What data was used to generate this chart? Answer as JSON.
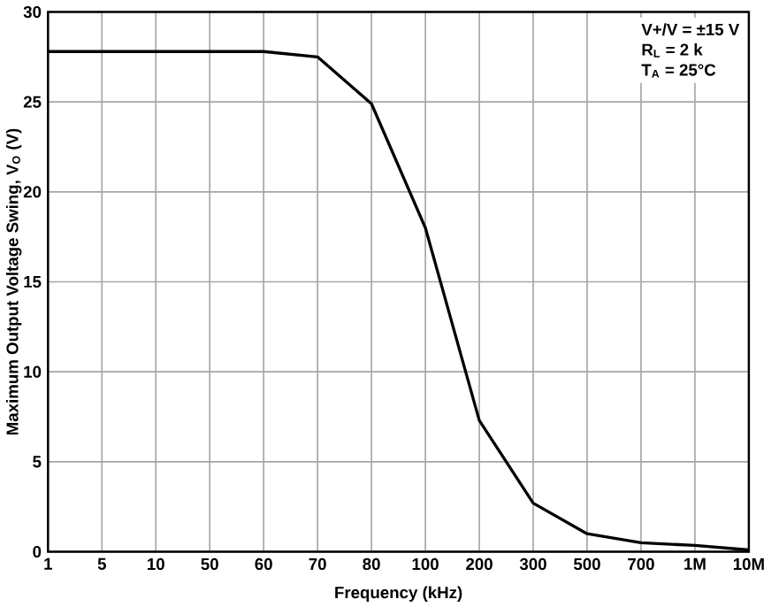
{
  "chart_data": {
    "type": "line",
    "xlabel": "Frequency (kHz)",
    "ylabel": "Maximum Output Voltage Swing, V$_{O}$ (V)",
    "categories": [
      "1",
      "5",
      "10",
      "50",
      "60",
      "70",
      "80",
      "100",
      "200",
      "300",
      "500",
      "700",
      "1M",
      "10M"
    ],
    "series": [
      {
        "color": "#000000",
        "values": [
          27.8,
          27.8,
          27.8,
          27.8,
          27.8,
          27.5,
          24.9,
          18.0,
          7.3,
          2.7,
          1.0,
          0.5,
          0.35,
          0.1
        ]
      }
    ],
    "ylim": [
      0,
      30
    ],
    "yticks": [
      0,
      5,
      10,
      15,
      20,
      25,
      30
    ],
    "grid": true,
    "marker": "none",
    "line_style": "solid",
    "annotations": [
      "V+/V =   ±15 V",
      "R$_{L}$ = 2 k",
      "T$_{A}$ = 25°C"
    ]
  }
}
